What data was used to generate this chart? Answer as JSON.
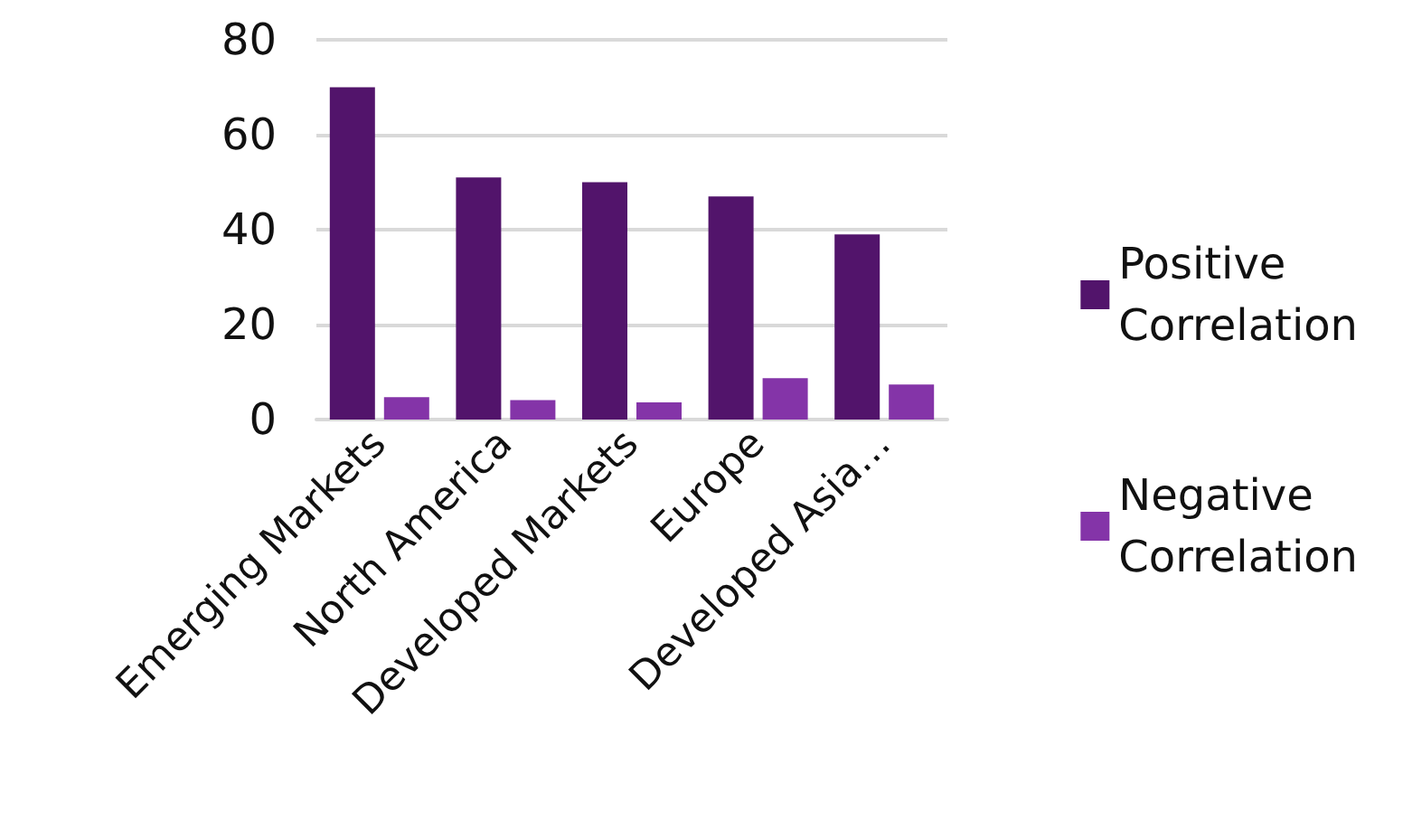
{
  "chart_data": {
    "type": "bar",
    "categories": [
      "Emerging Markets",
      "North America",
      "Developed Markets",
      "Europe",
      "Developed Asia…"
    ],
    "series": [
      {
        "name": "Positive Correlation",
        "color": "#52146b",
        "values": [
          70,
          51,
          50,
          47,
          39
        ]
      },
      {
        "name": "Negative Correlation",
        "color": "#8434a8",
        "values": [
          4.7,
          4.1,
          3.6,
          8.7,
          7.4
        ]
      }
    ],
    "ylim": [
      0,
      80
    ],
    "yticks": [
      0,
      20,
      40,
      60,
      80
    ],
    "grid": "y",
    "legend": "right"
  }
}
